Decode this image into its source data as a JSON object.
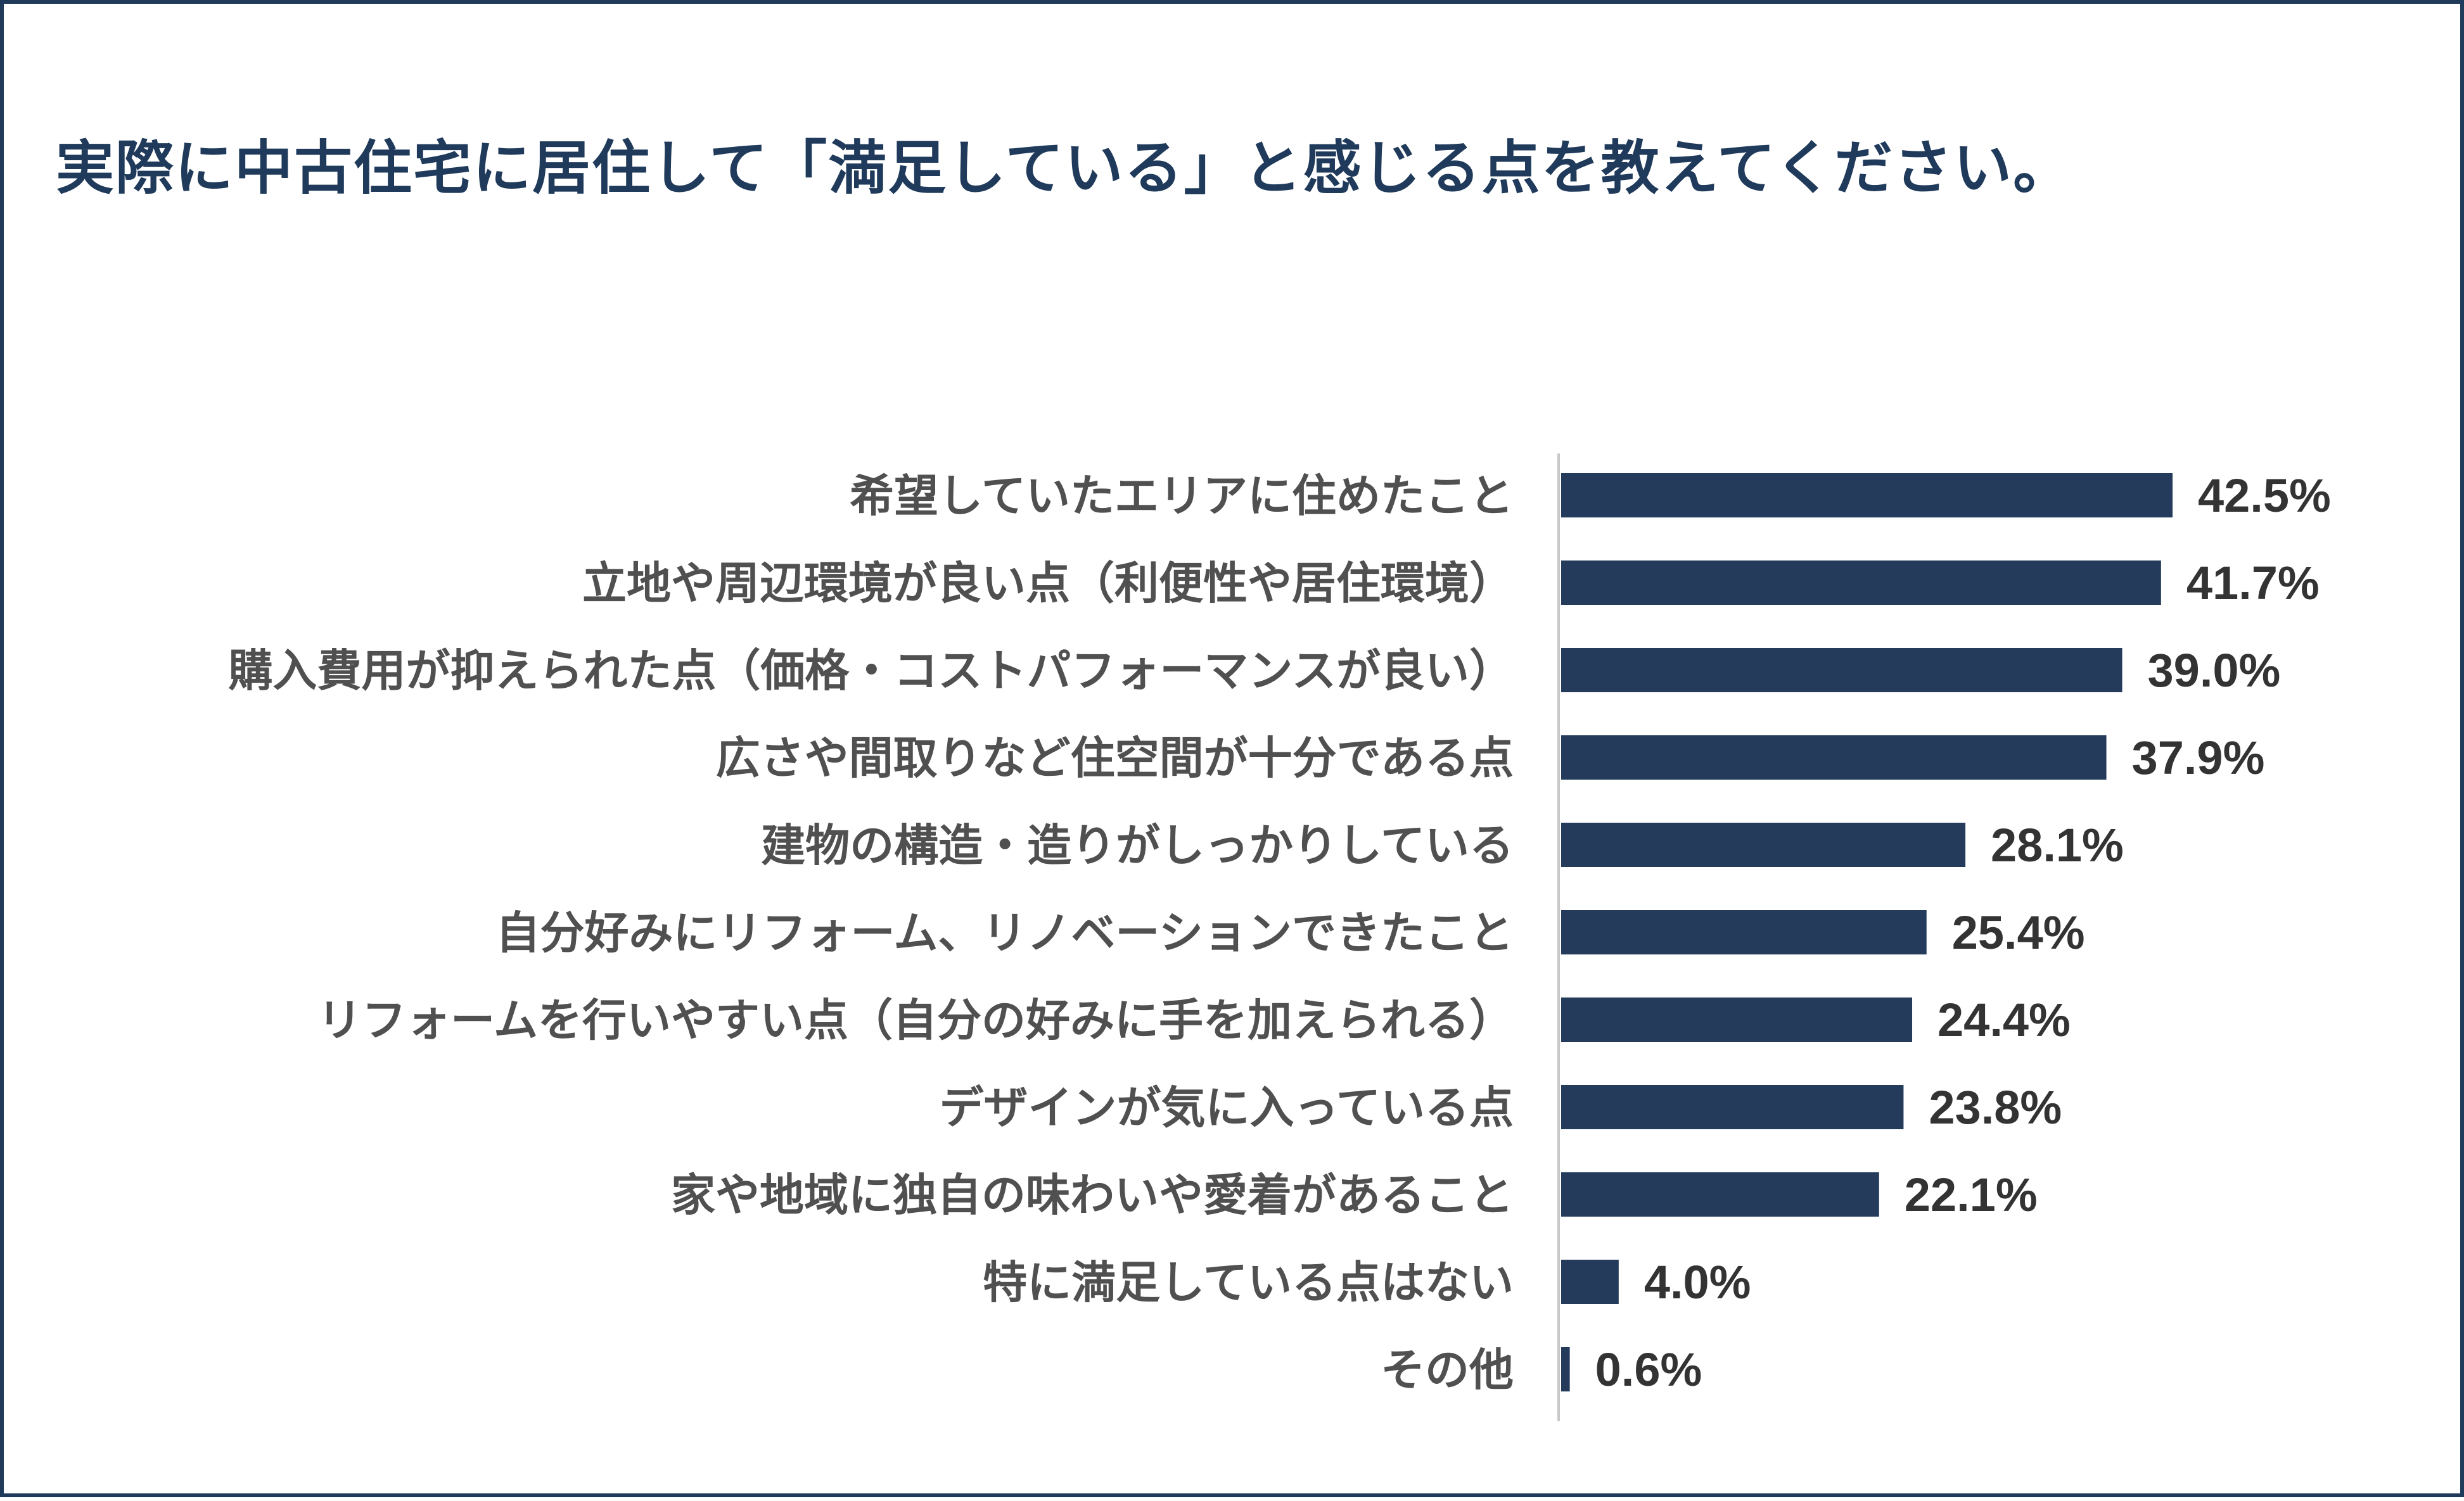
{
  "chart_data": {
    "type": "bar",
    "orientation": "horizontal",
    "title": "実際に中古住宅に居住して「満足している」と感じる点を教えてください。",
    "categories": [
      "希望していたエリアに住めたこと",
      "立地や周辺環境が良い点（利便性や居住環境）",
      "購入費用が抑えられた点（価格・コストパフォーマンスが良い）",
      "広さや間取りなど住空間が十分である点",
      "建物の構造・造りがしっかりしている",
      "自分好みにリフォーム、リノベーションできたこと",
      "リフォームを行いやすい点（自分の好みに手を加えられる）",
      "デザインが気に入っている点",
      "家や地域に独自の味わいや愛着があること",
      "特に満足している点はない",
      "その他"
    ],
    "values": [
      42.5,
      41.7,
      39.0,
      37.9,
      28.1,
      25.4,
      24.4,
      23.8,
      22.1,
      4.0,
      0.6
    ],
    "value_labels": [
      "42.5%",
      "41.7%",
      "39.0%",
      "37.9%",
      "28.1%",
      "25.4%",
      "24.4%",
      "23.8%",
      "22.1%",
      "4.0%",
      "0.6%"
    ],
    "xlim": [
      0,
      50
    ],
    "grid": false,
    "legend": "none",
    "bar_color": "#243b5c"
  }
}
